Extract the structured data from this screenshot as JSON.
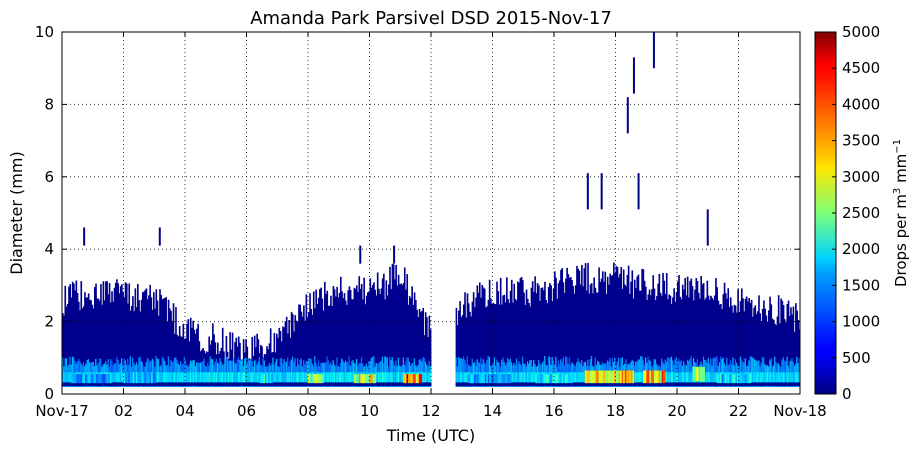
{
  "chart_data": {
    "type": "heatmap",
    "title": "Amanda Park Parsivel DSD 2015-Nov-17",
    "xlabel": "Time (UTC)",
    "ylabel": "Diameter (mm)",
    "x_unit": "hour UTC",
    "xlim": [
      0,
      24
    ],
    "ylim": [
      0,
      10
    ],
    "grid": true,
    "x_ticks": [
      {
        "value": 0,
        "label": "Nov-17"
      },
      {
        "value": 2,
        "label": "02"
      },
      {
        "value": 4,
        "label": "04"
      },
      {
        "value": 6,
        "label": "06"
      },
      {
        "value": 8,
        "label": "08"
      },
      {
        "value": 10,
        "label": "10"
      },
      {
        "value": 12,
        "label": "12"
      },
      {
        "value": 14,
        "label": "14"
      },
      {
        "value": 16,
        "label": "16"
      },
      {
        "value": 18,
        "label": "18"
      },
      {
        "value": 20,
        "label": "20"
      },
      {
        "value": 22,
        "label": "22"
      },
      {
        "value": 24,
        "label": "Nov-18"
      }
    ],
    "y_ticks": [
      0,
      2,
      4,
      6,
      8,
      10
    ],
    "colorbar": {
      "label_prefix": "Drops per m",
      "label_sup1": "3",
      "label_mid": " mm",
      "label_sup2": "−1",
      "min": 0,
      "max": 5000,
      "ticks": [
        0,
        500,
        1000,
        1500,
        2000,
        2500,
        3000,
        3500,
        4000,
        4500,
        5000
      ],
      "colormap": "jet"
    },
    "gap": [
      12.0,
      12.8
    ],
    "series": [
      {
        "x": [
          0.0,
          1.0,
          2.0,
          3.0,
          4.0,
          5.0,
          6.0,
          7.0,
          8.0,
          9.0,
          10.0,
          11.0,
          12.0
        ],
        "top": [
          2.6,
          2.8,
          2.7,
          2.7,
          1.7,
          1.5,
          1.1,
          1.5,
          2.4,
          2.9,
          2.8,
          3.3,
          1.6
        ]
      },
      {
        "x": [
          12.8,
          13.0,
          14.0,
          15.0,
          16.0,
          17.0,
          18.0,
          19.0,
          20.0,
          21.0,
          22.0,
          23.0,
          24.0
        ],
        "top": [
          2.0,
          2.4,
          2.9,
          2.8,
          3.0,
          3.2,
          3.2,
          3.0,
          2.9,
          3.0,
          2.5,
          2.4,
          2.0
        ]
      }
    ],
    "spikes": [
      {
        "x": 0.72,
        "top": 4.6
      },
      {
        "x": 3.18,
        "top": 4.6
      },
      {
        "x": 9.7,
        "top": 4.1
      },
      {
        "x": 10.8,
        "top": 4.1
      },
      {
        "x": 17.1,
        "top": 6.1
      },
      {
        "x": 17.55,
        "top": 6.1
      },
      {
        "x": 18.4,
        "top": 8.2
      },
      {
        "x": 18.6,
        "top": 9.3
      },
      {
        "x": 18.75,
        "top": 6.1
      },
      {
        "x": 19.25,
        "top": 10.0
      },
      {
        "x": 21.0,
        "top": 5.1
      }
    ],
    "hotspots": [
      {
        "x": [
          6.4,
          6.8
        ],
        "y": [
          0.3,
          0.55
        ],
        "value": 2500
      },
      {
        "x": [
          8.0,
          8.5
        ],
        "y": [
          0.3,
          0.55
        ],
        "value": 3200
      },
      {
        "x": [
          9.5,
          10.2
        ],
        "y": [
          0.3,
          0.55
        ],
        "value": 3800
      },
      {
        "x": [
          11.1,
          11.7
        ],
        "y": [
          0.3,
          0.55
        ],
        "value": 5000
      },
      {
        "x": [
          17.0,
          18.1
        ],
        "y": [
          0.3,
          0.65
        ],
        "value": 3800
      },
      {
        "x": [
          18.1,
          18.6
        ],
        "y": [
          0.3,
          0.65
        ],
        "value": 4600
      },
      {
        "x": [
          18.9,
          19.6
        ],
        "y": [
          0.3,
          0.65
        ],
        "value": 4300
      },
      {
        "x": [
          20.5,
          20.9
        ],
        "y": [
          0.35,
          0.75
        ],
        "value": 3300
      },
      {
        "x": [
          15.4,
          16.6
        ],
        "y": [
          0.3,
          0.55
        ],
        "value": 2300
      },
      {
        "x": [
          21.3,
          22.4
        ],
        "y": [
          0.3,
          0.55
        ],
        "value": 2200
      },
      {
        "x": [
          0.3,
          1.6
        ],
        "y": [
          0.3,
          0.55
        ],
        "value": 1800
      },
      {
        "x": [
          2.0,
          3.0
        ],
        "y": [
          0.3,
          0.6
        ],
        "value": 1900
      },
      {
        "x": [
          13.2,
          14.6
        ],
        "y": [
          0.3,
          0.55
        ],
        "value": 1900
      }
    ]
  }
}
